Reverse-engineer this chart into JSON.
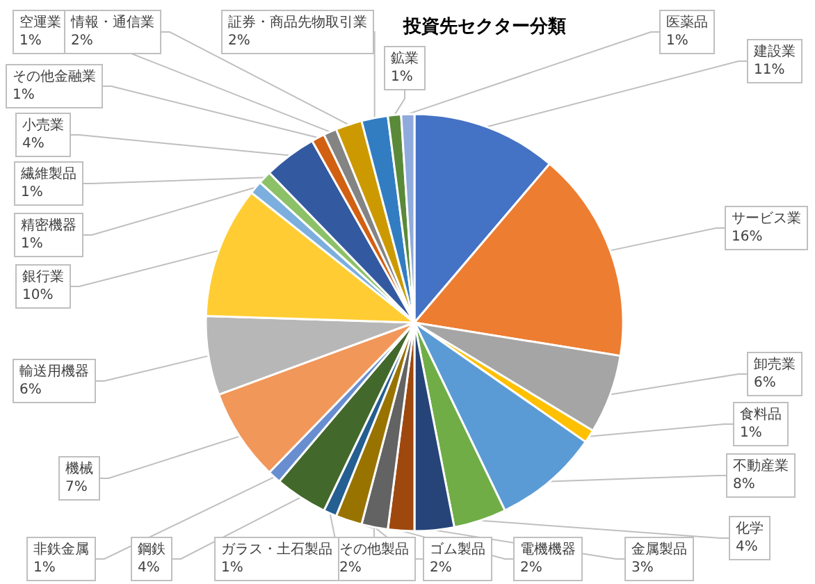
{
  "chart_data": {
    "type": "pie",
    "title": "投資先セクター分類",
    "categories": [
      "建設業",
      "サービス業",
      "卸売業",
      "食料品",
      "不動産業",
      "化学",
      "金属製品",
      "電機機器",
      "ゴム製品",
      "その他製品",
      "ガラス・土石製品",
      "鋼鉄",
      "非鉄金属",
      "機械",
      "輸送用機器",
      "銀行業",
      "精密機器",
      "繊維製品",
      "小売業",
      "その他金融業",
      "空運業",
      "情報・通信業",
      "証券・商品先物取引業",
      "鉱業",
      "医薬品"
    ],
    "values": [
      11,
      16,
      6,
      1,
      8,
      4,
      3,
      2,
      2,
      2,
      1,
      4,
      1,
      7,
      6,
      10,
      1,
      1,
      4,
      1,
      1,
      2,
      2,
      1,
      1
    ],
    "colors": [
      "#4472c4",
      "#ed7d31",
      "#a5a5a5",
      "#ffc000",
      "#5b9bd5",
      "#70ad47",
      "#264478",
      "#9e480e",
      "#636363",
      "#997300",
      "#255e91",
      "#43682b",
      "#698ed0",
      "#f1975a",
      "#b7b7b7",
      "#ffcd33",
      "#7cafdd",
      "#8cc168",
      "#335aa1",
      "#d26012",
      "#848484",
      "#cc9a00",
      "#327dc2",
      "#5a8a39",
      "#8faadc"
    ],
    "value_labels": [
      "11%",
      "16%",
      "6%",
      "1%",
      "8%",
      "4%",
      "3%",
      "2%",
      "2%",
      "2%",
      "1%",
      "4%",
      "1%",
      "7%",
      "6%",
      "10%",
      "1%",
      "1%",
      "4%",
      "1%",
      "1%",
      "2%",
      "2%",
      "1%",
      "1%"
    ]
  }
}
